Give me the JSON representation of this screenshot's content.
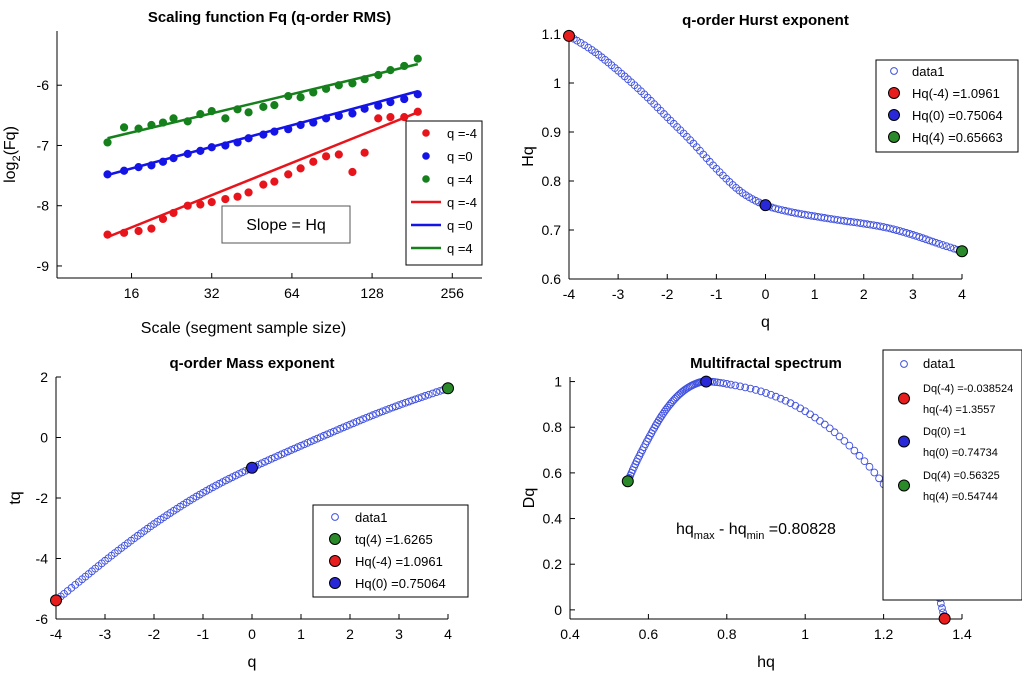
{
  "colors": {
    "red": "#e8141c",
    "blue": "#1414e6",
    "green": "#15801c",
    "open_marker": "#3f50e0",
    "dot_red": "#e81e1e",
    "dot_blue": "#2828d8",
    "dot_green": "#2a8a2a"
  },
  "chart_data": [
    {
      "id": "scaling",
      "type": "scatter",
      "title": "Scaling function Fq (q-order RMS)",
      "xlabel": "Scale (segment sample size)",
      "ylabel_main": "log",
      "ylabel_sub": "2",
      "ylabel_tail": "(Fq)",
      "x_scale": "log2",
      "xlim": [
        8.4,
        331
      ],
      "ylim": [
        -9.2,
        -5.1
      ],
      "xticks": [
        16,
        32,
        64,
        128,
        256
      ],
      "yticks": [
        -9,
        -8,
        -7,
        -6
      ],
      "annotation": "Slope = Hq",
      "series": [
        {
          "name": "q =-4",
          "kind": "points",
          "color": "red",
          "x": [
            13,
            15,
            17,
            19,
            21,
            23,
            26,
            29,
            32,
            36,
            40,
            44,
            50,
            55,
            62,
            69,
            77,
            86,
            96,
            108,
            120,
            135,
            150,
            169,
            190
          ],
          "y": [
            -8.48,
            -8.45,
            -8.42,
            -8.38,
            -8.22,
            -8.12,
            -8.0,
            -7.98,
            -7.94,
            -7.89,
            -7.85,
            -7.78,
            -7.65,
            -7.6,
            -7.48,
            -7.38,
            -7.27,
            -7.18,
            -7.15,
            -7.44,
            -7.12,
            -6.55,
            -6.53,
            -6.53,
            -6.44
          ]
        },
        {
          "name": "q =0",
          "kind": "points",
          "color": "blue",
          "x": [
            13,
            15,
            17,
            19,
            21,
            23,
            26,
            29,
            32,
            36,
            40,
            44,
            50,
            55,
            62,
            69,
            77,
            86,
            96,
            108,
            120,
            135,
            150,
            169,
            190
          ],
          "y": [
            -7.48,
            -7.42,
            -7.36,
            -7.33,
            -7.27,
            -7.21,
            -7.14,
            -7.09,
            -7.03,
            -7.0,
            -6.95,
            -6.88,
            -6.82,
            -6.77,
            -6.73,
            -6.66,
            -6.62,
            -6.55,
            -6.51,
            -6.47,
            -6.39,
            -6.34,
            -6.28,
            -6.23,
            -6.15
          ]
        },
        {
          "name": "q =4",
          "kind": "points",
          "color": "green",
          "x": [
            13,
            15,
            17,
            19,
            21,
            23,
            26,
            29,
            32,
            36,
            40,
            44,
            50,
            55,
            62,
            69,
            77,
            86,
            96,
            108,
            120,
            135,
            150,
            169,
            190
          ],
          "y": [
            -6.95,
            -6.7,
            -6.72,
            -6.66,
            -6.62,
            -6.55,
            -6.6,
            -6.48,
            -6.43,
            -6.55,
            -6.4,
            -6.45,
            -6.36,
            -6.33,
            -6.18,
            -6.2,
            -6.12,
            -6.06,
            -6.0,
            -5.97,
            -5.9,
            -5.83,
            -5.75,
            -5.68,
            -5.56
          ]
        },
        {
          "name": "q =-4",
          "kind": "line",
          "color": "red",
          "x": [
            13,
            190
          ],
          "y": [
            -8.52,
            -6.45
          ]
        },
        {
          "name": "q =0",
          "kind": "line",
          "color": "blue",
          "x": [
            13,
            190
          ],
          "y": [
            -7.49,
            -6.1
          ]
        },
        {
          "name": "q =4",
          "kind": "line",
          "color": "green",
          "x": [
            13,
            190
          ],
          "y": [
            -6.88,
            -5.65
          ]
        }
      ]
    },
    {
      "id": "hurst",
      "type": "scatter",
      "title": "q-order Hurst exponent",
      "xlabel": "q",
      "ylabel": "Hq",
      "xlim": [
        -4,
        4
      ],
      "ylim": [
        0.6,
        1.1
      ],
      "xticks": [
        -4,
        -3,
        -2,
        -1,
        0,
        1,
        2,
        3,
        4
      ],
      "ytick_labels": [
        "0.6",
        "0.7",
        "0.8",
        "0.9",
        "1",
        "1.1"
      ],
      "yticks": [
        0.6,
        0.7,
        0.8,
        0.9,
        1.0,
        1.1
      ],
      "curve": {
        "x": [
          -4,
          -3.5,
          -3,
          -2.5,
          -2,
          -1.5,
          -1,
          -0.5,
          0,
          0.5,
          1,
          1.5,
          2,
          2.5,
          3,
          3.5,
          4
        ],
        "y": [
          1.0961,
          1.065,
          1.025,
          0.98,
          0.93,
          0.88,
          0.825,
          0.778,
          0.75064,
          0.737,
          0.728,
          0.72,
          0.713,
          0.704,
          0.69,
          0.673,
          0.65663
        ]
      },
      "highlights": [
        {
          "x": -4,
          "y": 1.0961,
          "color": "red"
        },
        {
          "x": 0,
          "y": 0.75064,
          "color": "blue"
        },
        {
          "x": 4,
          "y": 0.65663,
          "color": "green"
        }
      ],
      "legend": [
        {
          "kind": "open",
          "label": "data1"
        },
        {
          "kind": "red",
          "label": "Hq(-4) =1.0961"
        },
        {
          "kind": "blue",
          "label": "Hq(0) =0.75064"
        },
        {
          "kind": "green",
          "label": "Hq(4) =0.65663"
        }
      ]
    },
    {
      "id": "mass",
      "type": "scatter",
      "title": "q-order Mass exponent",
      "xlabel": "q",
      "ylabel": "tq",
      "xlim": [
        -4,
        4
      ],
      "ylim": [
        -6,
        2
      ],
      "xticks": [
        -4,
        -3,
        -2,
        -1,
        0,
        1,
        2,
        3,
        4
      ],
      "yticks": [
        -6,
        -4,
        -2,
        0,
        2
      ],
      "curve": {
        "x": [
          -4,
          -3.5,
          -3,
          -2.5,
          -2,
          -1.5,
          -1,
          -0.5,
          0,
          0.5,
          1,
          1.5,
          2,
          2.5,
          3,
          3.5,
          4
        ],
        "y": [
          -5.384,
          -4.73,
          -4.075,
          -3.45,
          -2.86,
          -2.32,
          -1.825,
          -1.39,
          -1.0,
          -0.63,
          -0.272,
          0.08,
          0.426,
          0.76,
          1.07,
          1.356,
          1.6265
        ]
      },
      "highlights": [
        {
          "x": -4,
          "y": -5.384,
          "color": "red"
        },
        {
          "x": 0,
          "y": -1.0,
          "color": "blue"
        },
        {
          "x": 4,
          "y": 1.6265,
          "color": "green"
        }
      ],
      "legend": [
        {
          "kind": "open",
          "label": "data1"
        },
        {
          "kind": "green",
          "label": "tq(4) =1.6265"
        },
        {
          "kind": "red",
          "label": "Hq(-4) =1.0961"
        },
        {
          "kind": "blue",
          "label": "Hq(0) =0.75064"
        }
      ]
    },
    {
      "id": "spectrum",
      "type": "scatter",
      "title": "Multifractal spectrum",
      "xlabel": "hq",
      "ylabel": "Dq",
      "xlim": [
        0.4,
        1.4
      ],
      "ylim": [
        -0.04,
        1.02
      ],
      "xticks": [
        0.4,
        0.6,
        0.8,
        1,
        1.2,
        1.4
      ],
      "xtick_labels": [
        "0.4",
        "0.6",
        "0.8",
        "1",
        "1.2",
        "1.4"
      ],
      "yticks": [
        0,
        0.2,
        0.4,
        0.6,
        0.8,
        1
      ],
      "ytick_labels": [
        "0",
        "0.2",
        "0.4",
        "0.6",
        "0.8",
        "1"
      ],
      "curve": {
        "x": [
          0.54744,
          0.57,
          0.6,
          0.63,
          0.66,
          0.69,
          0.72,
          0.74734,
          0.8,
          0.9,
          1.0,
          1.1,
          1.2,
          1.28,
          1.33,
          1.3557
        ],
        "y": [
          0.56325,
          0.65,
          0.75,
          0.84,
          0.91,
          0.96,
          0.99,
          1.0,
          0.99,
          0.95,
          0.87,
          0.74,
          0.55,
          0.32,
          0.12,
          -0.038524
        ]
      },
      "highlights": [
        {
          "x": 0.54744,
          "y": 0.56325,
          "color": "green"
        },
        {
          "x": 0.74734,
          "y": 1.0,
          "color": "blue"
        },
        {
          "x": 1.3557,
          "y": -0.038524,
          "color": "red"
        }
      ],
      "annotation": {
        "main": "hq",
        "sub1": "max",
        "mid": " - hq",
        "sub2": "min",
        "tail": " =0.80828"
      },
      "legend": [
        {
          "kind": "open",
          "lines": [
            "data1"
          ]
        },
        {
          "kind": "red",
          "lines": [
            "Dq(-4) =-0.038524",
            "hq(-4) =1.3557"
          ]
        },
        {
          "kind": "blue",
          "lines": [
            "Dq(0) =1",
            "hq(0) =0.74734"
          ]
        },
        {
          "kind": "green",
          "lines": [
            "Dq(4) =0.56325",
            "hq(4) =0.54744"
          ]
        }
      ]
    }
  ]
}
